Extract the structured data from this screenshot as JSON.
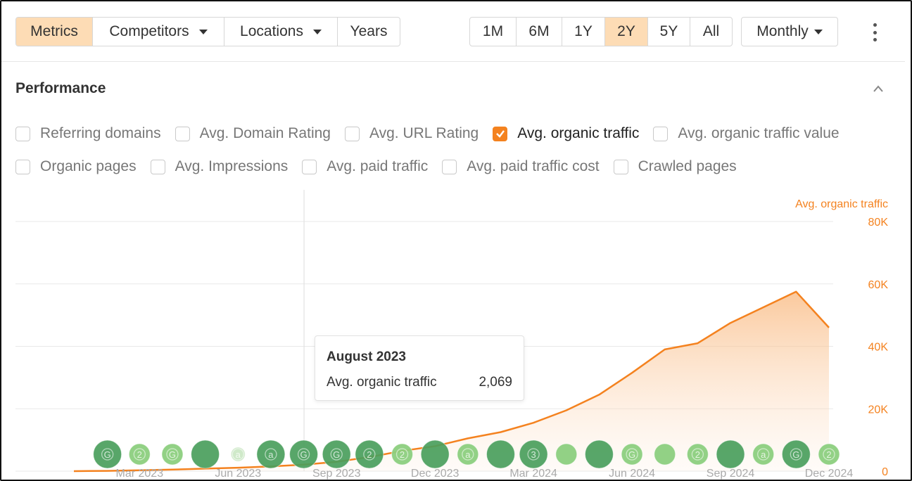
{
  "toolbar": {
    "tabs": [
      {
        "label": "Metrics",
        "active": true
      },
      {
        "label": "Competitors",
        "dropdown": true
      },
      {
        "label": "Locations",
        "dropdown": true
      },
      {
        "label": "Years"
      }
    ],
    "ranges": [
      {
        "label": "1M"
      },
      {
        "label": "6M"
      },
      {
        "label": "1Y"
      },
      {
        "label": "2Y",
        "active": true
      },
      {
        "label": "5Y"
      },
      {
        "label": "All"
      }
    ],
    "interval": {
      "label": "Monthly"
    }
  },
  "section": {
    "title": "Performance"
  },
  "metrics_row1": [
    {
      "label": "Referring domains",
      "checked": false
    },
    {
      "label": "Avg. Domain Rating",
      "checked": false
    },
    {
      "label": "Avg. URL Rating",
      "checked": false
    },
    {
      "label": "Avg. organic traffic",
      "checked": true
    },
    {
      "label": "Avg. organic traffic value",
      "checked": false
    }
  ],
  "metrics_row2": [
    {
      "label": "Organic pages",
      "checked": false
    },
    {
      "label": "Avg. Impressions",
      "checked": false
    },
    {
      "label": "Avg. paid traffic",
      "checked": false
    },
    {
      "label": "Avg. paid traffic cost",
      "checked": false
    },
    {
      "label": "Crawled pages",
      "checked": false
    }
  ],
  "tooltip": {
    "title": "August 2023",
    "name": "Avg. organic traffic",
    "value": "2,069"
  },
  "colors": {
    "accent": "#f4821f",
    "active_bg": "#fddcb5",
    "marker_dark": "#4a9e5c",
    "marker_light": "#8ccf7e"
  },
  "chart_data": {
    "type": "area",
    "series": [
      {
        "name": "Avg. organic traffic",
        "x": [
          "2023-01",
          "2023-02",
          "2023-03",
          "2023-04",
          "2023-05",
          "2023-06",
          "2023-07",
          "2023-08",
          "2023-09",
          "2023-10",
          "2023-11",
          "2023-12",
          "2024-01",
          "2024-02",
          "2024-03",
          "2024-04",
          "2024-05",
          "2024-06",
          "2024-07",
          "2024-08",
          "2024-09",
          "2024-10",
          "2024-11",
          "2024-12"
        ],
        "values": [
          0,
          100,
          300,
          500,
          800,
          1100,
          1500,
          2069,
          3000,
          4500,
          6500,
          8000,
          10500,
          12500,
          15500,
          19500,
          24500,
          31500,
          39000,
          41000,
          47500,
          52500,
          57500,
          46000
        ]
      }
    ],
    "y_axis_label": "Avg. organic traffic",
    "y_ticks": [
      "0",
      "20K",
      "40K",
      "60K",
      "80K"
    ],
    "ylim": [
      0,
      80000
    ],
    "x_tick_labels": [
      "Mar 2023",
      "Jun 2023",
      "Sep 2023",
      "Dec 2023",
      "Mar 2024",
      "Jun 2024",
      "Sep 2024",
      "Dec 2024"
    ],
    "x_ticks": [
      "2023-03",
      "2023-06",
      "2023-09",
      "2023-12",
      "2024-03",
      "2024-06",
      "2024-09",
      "2024-12"
    ],
    "hover": "2023-08",
    "grid": true,
    "annotations": [
      {
        "x": "2023-02",
        "label": "G",
        "kind": "dark"
      },
      {
        "x": "2023-03",
        "label": "2",
        "kind": "light"
      },
      {
        "x": "2023-04",
        "label": "G",
        "kind": "light"
      },
      {
        "x": "2023-05",
        "label": "",
        "kind": "dark"
      },
      {
        "x": "2023-06",
        "label": "a",
        "kind": "faint"
      },
      {
        "x": "2023-07",
        "label": "a",
        "kind": "dark"
      },
      {
        "x": "2023-08",
        "label": "G",
        "kind": "dark"
      },
      {
        "x": "2023-09",
        "label": "G",
        "kind": "dark"
      },
      {
        "x": "2023-10",
        "label": "2",
        "kind": "dark"
      },
      {
        "x": "2023-11",
        "label": "2",
        "kind": "light"
      },
      {
        "x": "2023-12",
        "label": "",
        "kind": "dark"
      },
      {
        "x": "2024-01",
        "label": "a",
        "kind": "light"
      },
      {
        "x": "2024-02",
        "label": "",
        "kind": "dark"
      },
      {
        "x": "2024-03",
        "label": "3",
        "kind": "dark"
      },
      {
        "x": "2024-04",
        "label": "",
        "kind": "light"
      },
      {
        "x": "2024-05",
        "label": "",
        "kind": "dark"
      },
      {
        "x": "2024-06",
        "label": "G",
        "kind": "light"
      },
      {
        "x": "2024-07",
        "label": "",
        "kind": "light"
      },
      {
        "x": "2024-08",
        "label": "2",
        "kind": "light"
      },
      {
        "x": "2024-09",
        "label": "",
        "kind": "dark"
      },
      {
        "x": "2024-10",
        "label": "a",
        "kind": "light"
      },
      {
        "x": "2024-11",
        "label": "G",
        "kind": "dark"
      },
      {
        "x": "2024-12",
        "label": "2",
        "kind": "light"
      }
    ]
  }
}
